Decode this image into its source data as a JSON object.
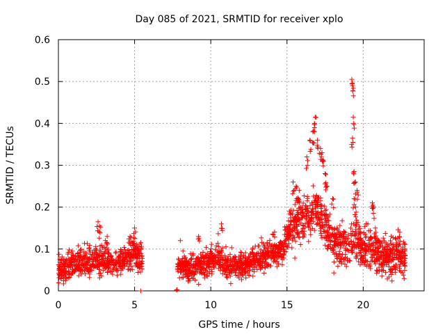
{
  "chart_data": {
    "type": "scatter",
    "title": "Day 085 of 2021, SRMTID for receiver xplo",
    "xlabel": "GPS time / hours",
    "ylabel": "SRMTID / TECUs",
    "xlim": [
      0,
      24
    ],
    "ylim": [
      0,
      0.6
    ],
    "x_ticks": [
      0,
      5,
      10,
      15,
      20
    ],
    "x_tick_labels": [
      "0",
      "5",
      "10",
      "15",
      "20"
    ],
    "y_ticks": [
      0,
      0.1,
      0.2,
      0.3,
      0.4,
      0.5,
      0.6
    ],
    "y_tick_labels": [
      "0",
      "0.1",
      "0.2",
      "0.3",
      "0.4",
      "0.5",
      "0.6"
    ],
    "grid": true,
    "marker": "plus",
    "series": [
      {
        "name": "SRMTID",
        "color": "#ff0000",
        "segments": [
          {
            "x_start": 0.0,
            "x_end": 5.5,
            "profile": [
              [
                0.0,
                0.05
              ],
              [
                0.5,
                0.055
              ],
              [
                1.0,
                0.065
              ],
              [
                1.5,
                0.068
              ],
              [
                2.0,
                0.065
              ],
              [
                2.5,
                0.07
              ],
              [
                3.0,
                0.075
              ],
              [
                3.5,
                0.07
              ],
              [
                4.0,
                0.065
              ],
              [
                4.5,
                0.08
              ],
              [
                5.0,
                0.09
              ],
              [
                5.5,
                0.07
              ]
            ],
            "spread": 0.028
          },
          {
            "x_start": 7.8,
            "x_end": 11.0,
            "profile": [
              [
                7.8,
                0.06
              ],
              [
                8.5,
                0.055
              ],
              [
                9.0,
                0.06
              ],
              [
                9.5,
                0.065
              ],
              [
                10.0,
                0.07
              ],
              [
                10.5,
                0.08
              ],
              [
                11.0,
                0.065
              ]
            ],
            "spread": 0.025
          },
          {
            "x_start": 11.0,
            "x_end": 14.8,
            "profile": [
              [
                11.0,
                0.06
              ],
              [
                12.0,
                0.06
              ],
              [
                13.0,
                0.075
              ],
              [
                14.0,
                0.09
              ],
              [
                14.8,
                0.1
              ]
            ],
            "spread": 0.025
          },
          {
            "x_start": 14.8,
            "x_end": 22.8,
            "profile": [
              [
                14.8,
                0.12
              ],
              [
                15.5,
                0.16
              ],
              [
                16.0,
                0.18
              ],
              [
                16.5,
                0.17
              ],
              [
                17.0,
                0.2
              ],
              [
                17.5,
                0.16
              ],
              [
                18.0,
                0.12
              ],
              [
                18.5,
                0.11
              ],
              [
                19.0,
                0.1
              ],
              [
                19.5,
                0.12
              ],
              [
                20.0,
                0.1
              ],
              [
                20.5,
                0.1
              ],
              [
                21.0,
                0.09
              ],
              [
                21.5,
                0.08
              ],
              [
                22.0,
                0.085
              ],
              [
                22.8,
                0.08
              ]
            ],
            "spread": 0.04
          }
        ],
        "peaks": [
          [
            2.6,
            0.165
          ],
          [
            2.7,
            0.155
          ],
          [
            3.2,
            0.13
          ],
          [
            4.7,
            0.13
          ],
          [
            5.0,
            0.15
          ],
          [
            5.4,
            0.0
          ],
          [
            7.75,
            0.002
          ],
          [
            7.8,
            0.003
          ],
          [
            8.0,
            0.12
          ],
          [
            9.2,
            0.13
          ],
          [
            10.7,
            0.16
          ],
          [
            15.4,
            0.26
          ],
          [
            15.6,
            0.25
          ],
          [
            15.8,
            0.24
          ],
          [
            16.3,
            0.32
          ],
          [
            16.5,
            0.36
          ],
          [
            16.7,
            0.38
          ],
          [
            16.8,
            0.4
          ],
          [
            16.85,
            0.415
          ],
          [
            17.0,
            0.36
          ],
          [
            17.2,
            0.34
          ],
          [
            17.3,
            0.33
          ],
          [
            17.4,
            0.31
          ],
          [
            17.5,
            0.28
          ],
          [
            17.6,
            0.25
          ],
          [
            18.0,
            0.22
          ],
          [
            19.25,
            0.505
          ],
          [
            19.3,
            0.49
          ],
          [
            19.35,
            0.415
          ],
          [
            19.3,
            0.365
          ],
          [
            19.4,
            0.285
          ],
          [
            19.5,
            0.26
          ],
          [
            19.6,
            0.24
          ],
          [
            19.4,
            0.22
          ],
          [
            19.5,
            0.2
          ],
          [
            20.6,
            0.21
          ],
          [
            20.7,
            0.2
          ],
          [
            20.8,
            0.15
          ],
          [
            22.4,
            0.14
          ]
        ],
        "gap": [
          5.6,
          7.7
        ]
      }
    ]
  }
}
